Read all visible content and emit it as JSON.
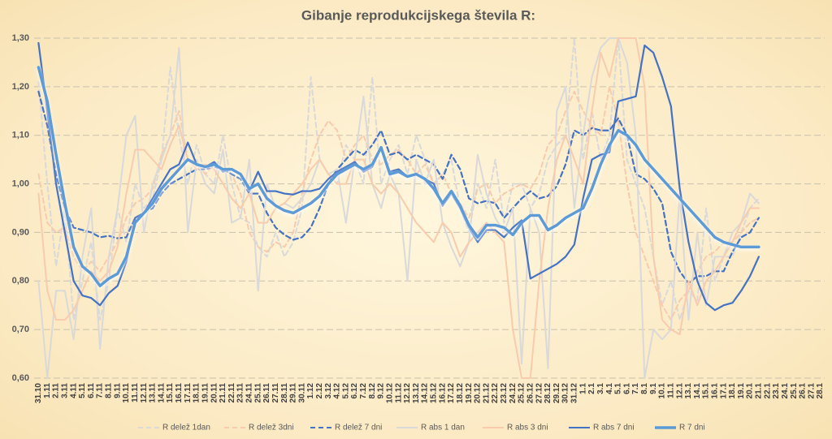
{
  "chart_data": {
    "type": "line",
    "title": "Gibanje reprodukcijskega števila R:",
    "categories": [
      "31.10",
      "1.11",
      "2.11",
      "3.11",
      "4.11",
      "5.11",
      "6.11",
      "7.11",
      "8.11",
      "9.11",
      "10.11",
      "11.11",
      "12.11",
      "13.11",
      "14.11",
      "15.11",
      "16.11",
      "17.11",
      "18.11",
      "19.11",
      "20.11",
      "21.11",
      "22.11",
      "23.11",
      "24.11",
      "25.11",
      "26.11",
      "27.11",
      "28.11",
      "29.11",
      "30.11",
      "1.12",
      "2.12",
      "3.12",
      "4.12",
      "5.12",
      "6.12",
      "7.12",
      "8.12",
      "9.12",
      "10.12",
      "11.12",
      "12.12",
      "13.12",
      "14.12",
      "15.12",
      "16.12",
      "17.12",
      "18.12",
      "19.12",
      "20.12",
      "21.12",
      "22.12",
      "23.12",
      "24.12",
      "25.12",
      "26.12",
      "27.12",
      "28.12",
      "29.12",
      "30.12",
      "31.12",
      "1.1",
      "2.1",
      "3.1",
      "4.1",
      "5.1",
      "6.1",
      "7.1",
      "8.1",
      "9.1",
      "10.1",
      "11.1",
      "12.1",
      "13.1",
      "14.1",
      "15.1",
      "16.1",
      "17.1",
      "18.1",
      "19.1",
      "20.1",
      "21.1",
      "22.1",
      "23.1",
      "24.1",
      "25.1",
      "26.1",
      "27.1",
      "28.1"
    ],
    "ylim": [
      0.6,
      1.3
    ],
    "yticks": [
      {
        "value": 0.6,
        "label": "0,60"
      },
      {
        "value": 0.7,
        "label": "0,70"
      },
      {
        "value": 0.8,
        "label": "0,80"
      },
      {
        "value": 0.9,
        "label": "0,90"
      },
      {
        "value": 1.0,
        "label": "1,00"
      },
      {
        "value": 1.1,
        "label": "1,10"
      },
      {
        "value": 1.2,
        "label": "1,20"
      },
      {
        "value": 1.3,
        "label": "1,30"
      }
    ],
    "grid": true,
    "legend": "bottom",
    "series": [
      {
        "name": "R delež 1dan",
        "color": "#d9d9d9",
        "dashed": true,
        "values": [
          1.21,
          1.0,
          0.83,
          0.95,
          0.72,
          0.8,
          0.88,
          0.72,
          0.8,
          0.95,
          0.88,
          1.0,
          0.95,
          0.97,
          1.05,
          1.24,
          1.1,
          1.0,
          1.08,
          1.02,
          1.0,
          1.1,
          1.0,
          0.93,
          0.92,
          0.87,
          0.85,
          0.9,
          0.85,
          0.88,
          0.95,
          1.22,
          1.05,
          1.02,
          1.0,
          1.08,
          1.05,
          1.0,
          1.22,
          1.0,
          1.05,
          1.08,
          1.02,
          1.1,
          1.05,
          1.0,
          1.02,
          1.05,
          0.95,
          0.9,
          1.0,
          0.95,
          1.05,
          0.92,
          1.0,
          1.0,
          0.95,
          0.98,
          1.05,
          1.08,
          1.1,
          1.3,
          1.05,
          1.15,
          1.05,
          1.1,
          1.3,
          1.05,
          1.0,
          0.95,
          0.85,
          0.75,
          0.8,
          0.72,
          0.78,
          0.76,
          0.95,
          0.8,
          0.85,
          0.85,
          0.9,
          0.95,
          0.97,
          null,
          null,
          null,
          null,
          null,
          null,
          null
        ]
      },
      {
        "name": "R delež 3dni",
        "color": "#f8cbad",
        "dashed": true,
        "values": [
          1.02,
          0.92,
          0.9,
          0.91,
          0.85,
          0.82,
          0.84,
          0.82,
          0.85,
          0.88,
          0.93,
          0.96,
          0.97,
          0.99,
          1.06,
          1.1,
          1.15,
          1.05,
          1.04,
          1.02,
          1.04,
          1.03,
          1.02,
          0.98,
          0.9,
          0.87,
          0.86,
          0.88,
          0.87,
          0.9,
          0.98,
          1.05,
          1.1,
          1.13,
          1.11,
          1.05,
          1.08,
          1.1,
          1.05,
          1.04,
          1.06,
          1.07,
          1.05,
          1.02,
          1.04,
          1.0,
          1.02,
          0.98,
          0.96,
          0.93,
          0.99,
          1.0,
          0.96,
          0.98,
          0.99,
          1.0,
          0.99,
          1.02,
          1.08,
          1.1,
          1.15,
          1.19,
          1.15,
          1.12,
          1.1,
          1.2,
          1.13,
          1.0,
          0.9,
          0.85,
          0.8,
          0.75,
          0.72,
          0.76,
          0.78,
          0.82,
          0.85,
          0.86,
          0.88,
          0.88,
          0.9,
          0.92,
          0.93,
          null,
          null,
          null,
          null,
          null,
          null,
          null
        ]
      },
      {
        "name": "R delež 7 dni",
        "color": "#4472c4",
        "dashed": true,
        "values": [
          1.19,
          1.12,
          1.02,
          0.95,
          0.91,
          0.905,
          0.9,
          0.89,
          0.893,
          0.888,
          0.89,
          0.93,
          0.94,
          0.95,
          0.98,
          1.0,
          1.01,
          1.02,
          1.03,
          1.03,
          1.035,
          1.03,
          1.02,
          1.01,
          0.98,
          0.98,
          0.94,
          0.91,
          0.895,
          0.885,
          0.89,
          0.91,
          0.95,
          1.0,
          1.03,
          1.05,
          1.07,
          1.06,
          1.08,
          1.11,
          1.06,
          1.065,
          1.05,
          1.06,
          1.05,
          1.04,
          1.01,
          1.06,
          1.03,
          0.97,
          0.96,
          0.965,
          0.96,
          0.93,
          0.95,
          0.97,
          0.985,
          0.97,
          0.975,
          0.995,
          1.04,
          1.11,
          1.1,
          1.115,
          1.11,
          1.11,
          1.135,
          1.1,
          1.02,
          1.01,
          0.99,
          0.96,
          0.86,
          0.82,
          0.795,
          0.81,
          0.81,
          0.82,
          0.82,
          0.86,
          0.89,
          0.9,
          0.93,
          null,
          null,
          null,
          null,
          null,
          null,
          null
        ]
      },
      {
        "name": "R abs 1 dan",
        "color": "#d9d9d9",
        "dashed": false,
        "values": [
          0.8,
          0.6,
          0.78,
          0.78,
          0.68,
          0.85,
          0.95,
          0.66,
          0.85,
          0.95,
          1.1,
          1.14,
          0.9,
          1.0,
          1.05,
          1.1,
          1.28,
          0.9,
          1.05,
          1.0,
          0.98,
          1.07,
          0.92,
          0.93,
          1.05,
          0.78,
          1.0,
          0.95,
          0.96,
          0.95,
          0.97,
          1.0,
          1.05,
          1.02,
          1.03,
          0.92,
          1.05,
          1.18,
          1.0,
          0.95,
          1.02,
          0.98,
          0.8,
          1.05,
          1.0,
          1.05,
          0.92,
          0.87,
          0.83,
          0.88,
          1.06,
          0.98,
          0.93,
          0.9,
          0.95,
          0.63,
          0.95,
          0.9,
          0.62,
          1.15,
          1.2,
          0.95,
          1.1,
          1.22,
          1.28,
          1.3,
          1.3,
          1.25,
          1.1,
          0.6,
          0.7,
          0.68,
          0.7,
          0.98,
          0.72,
          0.9,
          0.75,
          0.85,
          0.85,
          0.9,
          0.92,
          0.98,
          0.96,
          null,
          null,
          null,
          null,
          null,
          null,
          null
        ]
      },
      {
        "name": "R abs 3 dni",
        "color": "#f8cbad",
        "dashed": false,
        "values": [
          0.98,
          0.78,
          0.72,
          0.72,
          0.74,
          0.78,
          0.82,
          0.8,
          0.82,
          0.87,
          0.98,
          1.07,
          1.07,
          1.05,
          1.03,
          1.08,
          1.12,
          1.05,
          1.03,
          1.04,
          1.03,
          1.0,
          0.97,
          0.95,
          0.98,
          0.92,
          0.92,
          0.95,
          0.96,
          0.98,
          1.0,
          1.03,
          1.05,
          1.02,
          1.0,
          1.0,
          1.05,
          1.05,
          1.0,
          0.98,
          1.0,
          0.98,
          0.95,
          0.92,
          0.9,
          0.88,
          0.92,
          0.9,
          0.85,
          0.88,
          0.9,
          0.92,
          0.9,
          0.88,
          0.7,
          0.6,
          0.6,
          0.8,
          0.95,
          1.05,
          1.1,
          1.05,
          1.0,
          1.15,
          1.27,
          1.22,
          1.3,
          1.3,
          1.3,
          1.2,
          0.85,
          0.72,
          0.7,
          0.69,
          0.8,
          0.75,
          0.8,
          0.82,
          0.85,
          0.88,
          0.92,
          0.95,
          0.95,
          null,
          null,
          null,
          null,
          null,
          null,
          null
        ]
      },
      {
        "name": "R abs 7 dni",
        "color": "#4472c4",
        "dashed": false,
        "values": [
          1.29,
          1.15,
          1.0,
          0.9,
          0.8,
          0.77,
          0.765,
          0.75,
          0.775,
          0.79,
          0.84,
          0.93,
          0.94,
          0.97,
          1.0,
          1.03,
          1.04,
          1.085,
          1.04,
          1.035,
          1.045,
          1.025,
          1.03,
          1.02,
          0.985,
          1.025,
          0.985,
          0.985,
          0.98,
          0.978,
          0.985,
          0.985,
          0.99,
          1.01,
          1.025,
          1.035,
          1.045,
          1.025,
          1.035,
          1.075,
          1.025,
          1.03,
          1.015,
          1.02,
          1.01,
          1.0,
          0.955,
          0.98,
          0.95,
          0.91,
          0.88,
          0.905,
          0.905,
          0.89,
          0.91,
          0.925,
          0.805,
          0.815,
          0.825,
          0.835,
          0.85,
          0.875,
          0.97,
          1.05,
          1.06,
          1.065,
          1.17,
          1.175,
          1.18,
          1.285,
          1.27,
          1.22,
          1.16,
          0.99,
          0.88,
          0.8,
          0.755,
          0.74,
          0.75,
          0.755,
          0.78,
          0.81,
          0.85,
          null,
          null,
          null,
          null,
          null,
          null,
          null
        ]
      },
      {
        "name": "R 7 dni",
        "color": "#5b9bd5",
        "dashed": false,
        "values": [
          1.24,
          1.17,
          1.06,
          0.96,
          0.87,
          0.83,
          0.815,
          0.79,
          0.805,
          0.815,
          0.85,
          0.92,
          0.94,
          0.96,
          0.99,
          1.01,
          1.03,
          1.05,
          1.04,
          1.035,
          1.04,
          1.03,
          1.03,
          1.02,
          0.99,
          1.0,
          0.97,
          0.955,
          0.945,
          0.94,
          0.95,
          0.96,
          0.975,
          1.0,
          1.02,
          1.03,
          1.04,
          1.03,
          1.04,
          1.075,
          1.02,
          1.025,
          1.015,
          1.02,
          1.01,
          0.99,
          0.96,
          0.985,
          0.955,
          0.915,
          0.89,
          0.915,
          0.915,
          0.91,
          0.895,
          0.92,
          0.935,
          0.935,
          0.905,
          0.915,
          0.93,
          0.94,
          0.95,
          0.99,
          1.04,
          1.08,
          1.11,
          1.1,
          1.08,
          1.05,
          1.03,
          1.01,
          0.99,
          0.97,
          0.95,
          0.93,
          0.91,
          0.89,
          0.88,
          0.875,
          0.87,
          0.87,
          0.87,
          null,
          null,
          null,
          null,
          null,
          null,
          null
        ]
      }
    ]
  }
}
